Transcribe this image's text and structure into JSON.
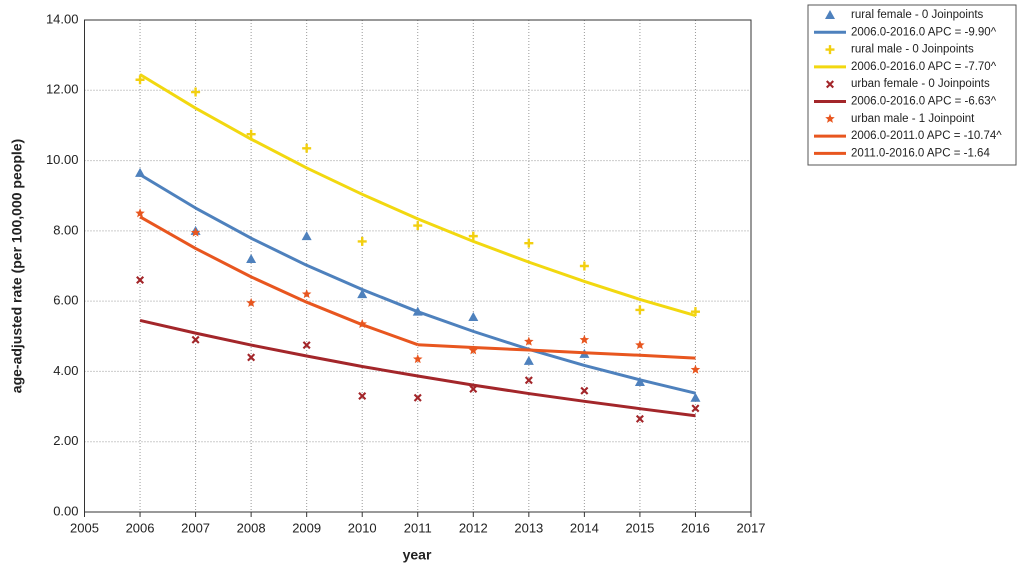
{
  "chart_data": {
    "type": "scatter",
    "x_label": "year",
    "y_label": "age-adjusted rate (per 100,000 people)",
    "x": [
      2006,
      2007,
      2008,
      2009,
      2010,
      2011,
      2012,
      2013,
      2014,
      2015,
      2016
    ],
    "xlim": [
      2005,
      2017
    ],
    "xticks": [
      2005,
      2006,
      2007,
      2008,
      2009,
      2010,
      2011,
      2012,
      2013,
      2014,
      2015,
      2016,
      2017
    ],
    "ylim": [
      0,
      14
    ],
    "yticks": [
      {
        "value": 0,
        "label": "0.00"
      },
      {
        "value": 2,
        "label": "2.00"
      },
      {
        "value": 4,
        "label": "4.00"
      },
      {
        "value": 6,
        "label": "6.00"
      },
      {
        "value": 8,
        "label": "8.00"
      },
      {
        "value": 10,
        "label": "10.00"
      },
      {
        "value": 12,
        "label": "12.00"
      },
      {
        "value": 14,
        "label": "14.00"
      }
    ],
    "grid": true,
    "legend": "outside-top-right",
    "series": [
      {
        "name": "rural female - 0 Joinpoints",
        "kind": "points",
        "marker": "triangle",
        "color": "#4e81bd",
        "values": [
          9.65,
          8.0,
          7.2,
          7.85,
          6.2,
          5.7,
          5.55,
          4.3,
          4.5,
          3.7,
          3.25
        ]
      },
      {
        "name": "2006.0-2016.0 APC  = -9.90^",
        "kind": "line",
        "color": "#4e81bd",
        "values": [
          9.6,
          8.65,
          7.79,
          7.02,
          6.33,
          5.7,
          5.14,
          4.63,
          4.17,
          3.76,
          3.38
        ]
      },
      {
        "name": "rural male - 0 Joinpoints",
        "kind": "points",
        "marker": "plus",
        "color": "#f2cf10",
        "values": [
          12.3,
          11.95,
          10.75,
          10.35,
          7.7,
          8.15,
          7.85,
          7.65,
          7.0,
          5.75,
          5.7
        ]
      },
      {
        "name": "2006.0-2016.0 APC  = -7.70^",
        "kind": "line",
        "color": "#f2d810",
        "values": [
          12.45,
          11.49,
          10.61,
          9.79,
          9.04,
          8.34,
          7.7,
          7.11,
          6.56,
          6.05,
          5.59
        ]
      },
      {
        "name": "urban female - 0 Joinpoints",
        "kind": "points",
        "marker": "x",
        "color": "#a3262a",
        "values": [
          6.6,
          4.9,
          4.4,
          4.75,
          3.3,
          3.25,
          3.5,
          3.75,
          3.45,
          2.65,
          2.95
        ]
      },
      {
        "name": "2006.0-2016.0 APC  = -6.63^",
        "kind": "line",
        "color": "#a3262a",
        "values": [
          5.45,
          5.09,
          4.75,
          4.44,
          4.14,
          3.87,
          3.61,
          3.37,
          3.15,
          2.94,
          2.74
        ]
      },
      {
        "name": "urban male - 1 Joinpoint",
        "kind": "points",
        "marker": "star",
        "color": "#e8561f",
        "values": [
          8.5,
          7.95,
          5.95,
          6.2,
          5.35,
          4.35,
          4.6,
          4.85,
          4.9,
          4.75,
          4.05
        ]
      },
      {
        "name": "2006.0-2011.0 APC  = -10.74^",
        "kind": "line",
        "color": "#e8561f",
        "values": [
          8.4,
          7.5,
          6.69,
          5.97,
          5.33,
          4.76,
          null,
          null,
          null,
          null,
          null
        ]
      },
      {
        "name": "2011.0-2016.0 APC  = -1.64",
        "kind": "line",
        "color": "#e8561f",
        "values": [
          null,
          null,
          null,
          null,
          null,
          4.76,
          4.68,
          4.61,
          4.53,
          4.46,
          4.38
        ]
      }
    ]
  }
}
